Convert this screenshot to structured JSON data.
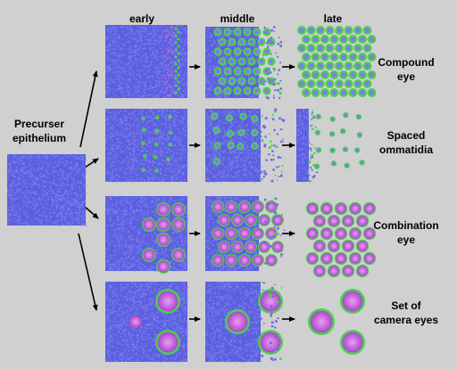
{
  "columns": [
    "early",
    "middle",
    "late"
  ],
  "precursor": {
    "line1": "Precurser",
    "line2": "epithelium"
  },
  "rows": [
    {
      "line1": "Compound",
      "line2": "eye"
    },
    {
      "line1": "Spaced",
      "line2": "ommatidia"
    },
    {
      "line1": "Combination",
      "line2": "eye"
    },
    {
      "line1": "Set of",
      "line2": "camera eyes"
    }
  ],
  "colors": {
    "background": "#d0d0d0",
    "epithelium": "#5c60e0",
    "cluster_rim": "#4ecf4e",
    "cluster_center": "#c060d8",
    "arrow": "#000000"
  }
}
